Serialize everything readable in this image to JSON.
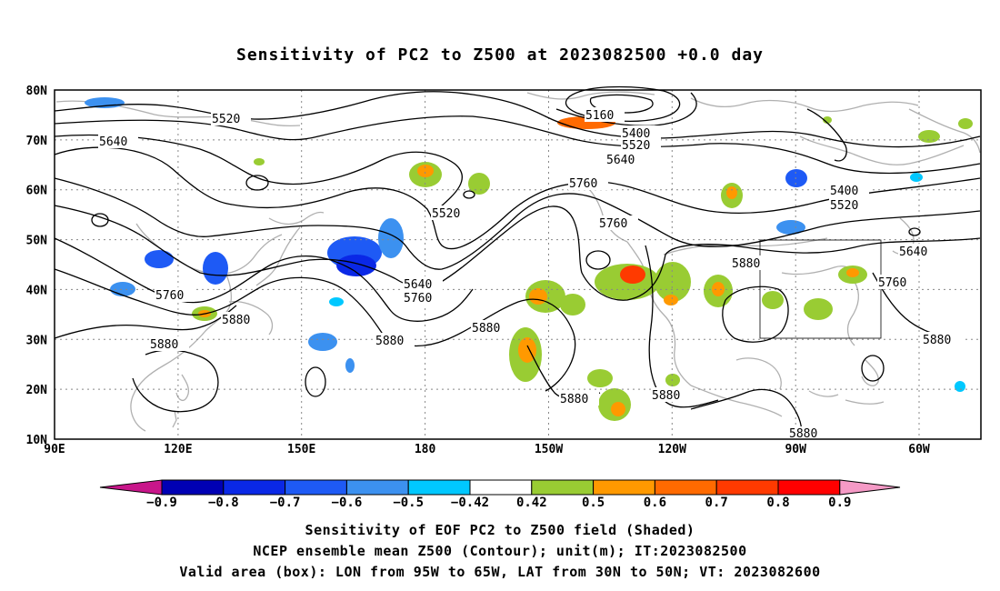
{
  "title": "Sensitivity of PC2 to Z500 at 2023082500 +0.0 day",
  "lat_labels": [
    "80N",
    "70N",
    "60N",
    "50N",
    "40N",
    "30N",
    "20N",
    "10N"
  ],
  "lon_labels": [
    "90E",
    "120E",
    "150E",
    "180",
    "150W",
    "120W",
    "90W",
    "60W"
  ],
  "contour_labels": {
    "c5160": "5160",
    "c5400": "5400",
    "c5400b": "5400",
    "c5520": "5520",
    "c5520b": "5520",
    "c5520c": "5520",
    "c5520d": "5520",
    "c5640": "5640",
    "c5640b": "5640",
    "c5640c": "5640",
    "c5640d": "5640",
    "c5760": "5760",
    "c5760b": "5760",
    "c5760c": "5760",
    "c5760d": "5760",
    "c5880": "5880",
    "c5880b": "5880",
    "c5880c": "5880",
    "c5880d": "5880",
    "c5880e": "5880",
    "c5880f": "5880",
    "c5880g": "5880",
    "c5880h": "5880"
  },
  "colorbar": {
    "labels": [
      "−0.9",
      "−0.8",
      "−0.7",
      "−0.6",
      "−0.5",
      "−0.42",
      "0.42",
      "0.5",
      "0.6",
      "0.7",
      "0.8",
      "0.9"
    ],
    "colors": [
      "#0000b4",
      "#0a28e6",
      "#1e5af5",
      "#3c91f0",
      "#00c8ff",
      "#ffffff",
      "#99cc33",
      "#ff9900",
      "#ff6a00",
      "#ff3a00",
      "#ff0000"
    ],
    "low_color": "#c8168a",
    "high_color": "#f59ac6"
  },
  "captions": {
    "line1": "Sensitivity of EOF PC2 to Z500 field (Shaded)",
    "line2": "NCEP ensemble mean Z500 (Contour); unit(m); IT:2023082500",
    "line3": "Valid area (box): LON from 95W to 65W, LAT from 30N to 50N; VT: 2023082600"
  }
}
